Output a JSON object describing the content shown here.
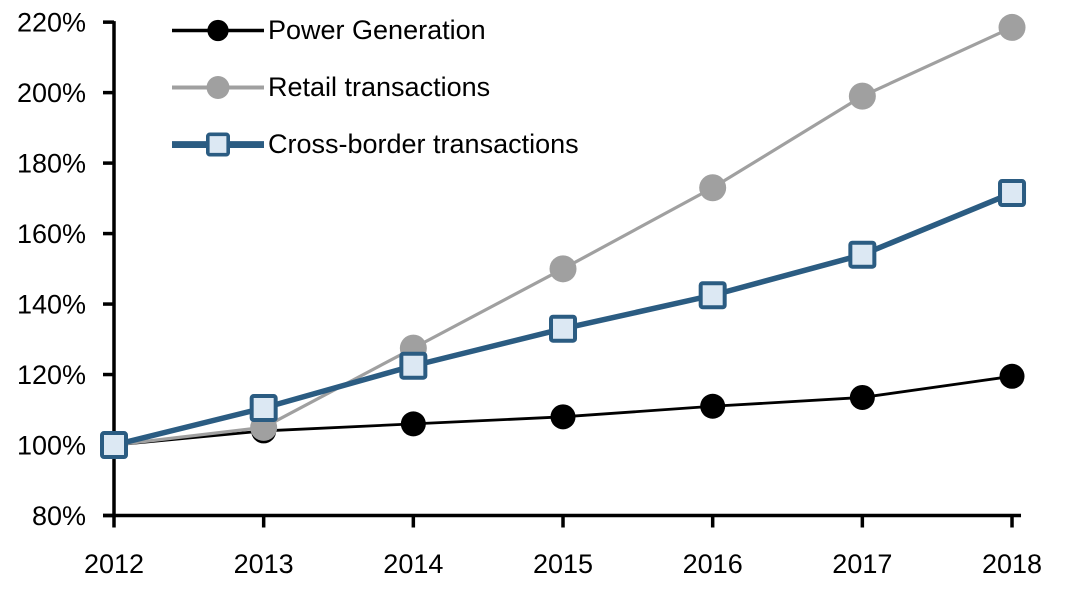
{
  "chart_data": {
    "type": "line",
    "title": "",
    "xlabel": "",
    "ylabel": "",
    "x_labels": [
      "2012",
      "2013",
      "2014",
      "2015",
      "2016",
      "2017",
      "2018"
    ],
    "y_axis": {
      "min": 80,
      "max": 220,
      "step": 20,
      "tick_labels": [
        "80%",
        "100%",
        "120%",
        "140%",
        "160%",
        "180%",
        "200%",
        "220%"
      ],
      "unit": "%"
    },
    "grid": false,
    "legend_position": "top-left-inside",
    "series": [
      {
        "name": "Power Generation",
        "color": "#000000",
        "marker": "circle",
        "marker_fill": "#000000",
        "marker_size": 25,
        "line_width": 2.8,
        "values": [
          100,
          104,
          106,
          108,
          111,
          113.5,
          119.5
        ]
      },
      {
        "name": "Retail transactions",
        "color": "#a0a0a0",
        "marker": "circle",
        "marker_fill": "#a0a0a0",
        "marker_size": 27,
        "line_width": 3.2,
        "values": [
          100,
          105,
          127.5,
          150,
          173,
          199,
          218.5
        ]
      },
      {
        "name": "Cross-border transactions",
        "color": "#2b5c82",
        "marker": "square",
        "marker_fill": "#dce8f3",
        "marker_size": 24,
        "line_width": 5.5,
        "values": [
          100,
          110.5,
          122.5,
          133,
          142.5,
          154,
          171.5
        ]
      }
    ]
  }
}
